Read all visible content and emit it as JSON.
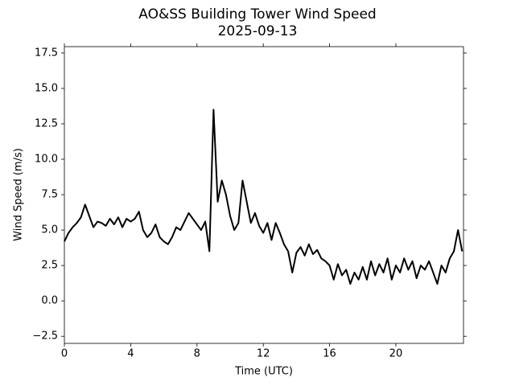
{
  "chart_data": {
    "type": "line",
    "title": "AO&SS Building Tower Wind Speed",
    "subtitle": "2025-09-13",
    "x_label": "Time (UTC)",
    "y_label": "Wind Speed (m/s)",
    "x": [
      0,
      0.25,
      0.5,
      0.75,
      1,
      1.25,
      1.5,
      1.75,
      2,
      2.25,
      2.5,
      2.75,
      3,
      3.25,
      3.5,
      3.75,
      4,
      4.25,
      4.5,
      4.75,
      5,
      5.25,
      5.5,
      5.75,
      6,
      6.25,
      6.5,
      6.75,
      7,
      7.25,
      7.5,
      7.75,
      8,
      8.25,
      8.5,
      8.75,
      9,
      9.25,
      9.5,
      9.75,
      10,
      10.25,
      10.5,
      10.75,
      11,
      11.25,
      11.5,
      11.75,
      12,
      12.25,
      12.5,
      12.75,
      13,
      13.25,
      13.5,
      13.75,
      14,
      14.25,
      14.5,
      14.75,
      15,
      15.25,
      15.5,
      15.75,
      16,
      16.25,
      16.5,
      16.75,
      17,
      17.25,
      17.5,
      17.75,
      18,
      18.25,
      18.5,
      18.75,
      19,
      19.25,
      19.5,
      19.75,
      20,
      20.25,
      20.5,
      20.75,
      21,
      21.25,
      21.5,
      21.75,
      22,
      22.25,
      22.5,
      22.75,
      23,
      23.25,
      23.5,
      23.75,
      24
    ],
    "series": [
      {
        "color": "#000000",
        "values": [
          4.2,
          4.8,
          5.2,
          5.5,
          5.9,
          6.8,
          6.0,
          5.2,
          5.6,
          5.5,
          5.3,
          5.8,
          5.4,
          5.9,
          5.2,
          5.8,
          5.6,
          5.8,
          6.3,
          5.0,
          4.5,
          4.8,
          5.4,
          4.5,
          4.2,
          4.0,
          4.5,
          5.2,
          5.0,
          5.6,
          6.2,
          5.8,
          5.4,
          5.0,
          5.6,
          3.5,
          13.5,
          7.0,
          8.5,
          7.5,
          6.0,
          5.0,
          5.5,
          8.5,
          7.0,
          5.5,
          6.2,
          5.3,
          4.8,
          5.5,
          4.3,
          5.5,
          4.8,
          4.0,
          3.5,
          2.0,
          3.4,
          3.8,
          3.2,
          4.0,
          3.3,
          3.6,
          3.0,
          2.8,
          2.5,
          1.5,
          2.6,
          1.8,
          2.2,
          1.2,
          2.0,
          1.5,
          2.4,
          1.5,
          2.8,
          1.8,
          2.6,
          2.0,
          3.0,
          1.5,
          2.5,
          2.0,
          3.0,
          2.2,
          2.8,
          1.6,
          2.5,
          2.2,
          2.8,
          2.0,
          1.2,
          2.5,
          2.0,
          3.0,
          3.5,
          5.0,
          3.5
        ]
      }
    ],
    "xlim": [
      0,
      24.08
    ],
    "xticks": [
      0,
      4,
      8,
      12,
      16,
      20
    ],
    "ylim": [
      -3.0,
      17.95
    ],
    "yticks": [
      {
        "value": -2.5,
        "label": "−2.5"
      },
      {
        "value": 0,
        "label": "0.0"
      },
      {
        "value": 2.5,
        "label": "2.5"
      },
      {
        "value": 5,
        "label": "5.0"
      },
      {
        "value": 7.5,
        "label": "7.5"
      },
      {
        "value": 10,
        "label": "10.0"
      },
      {
        "value": 12.5,
        "label": "12.5"
      },
      {
        "value": 15,
        "label": "15.0"
      },
      {
        "value": 17.5,
        "label": "17.5"
      }
    ],
    "grid": false
  }
}
